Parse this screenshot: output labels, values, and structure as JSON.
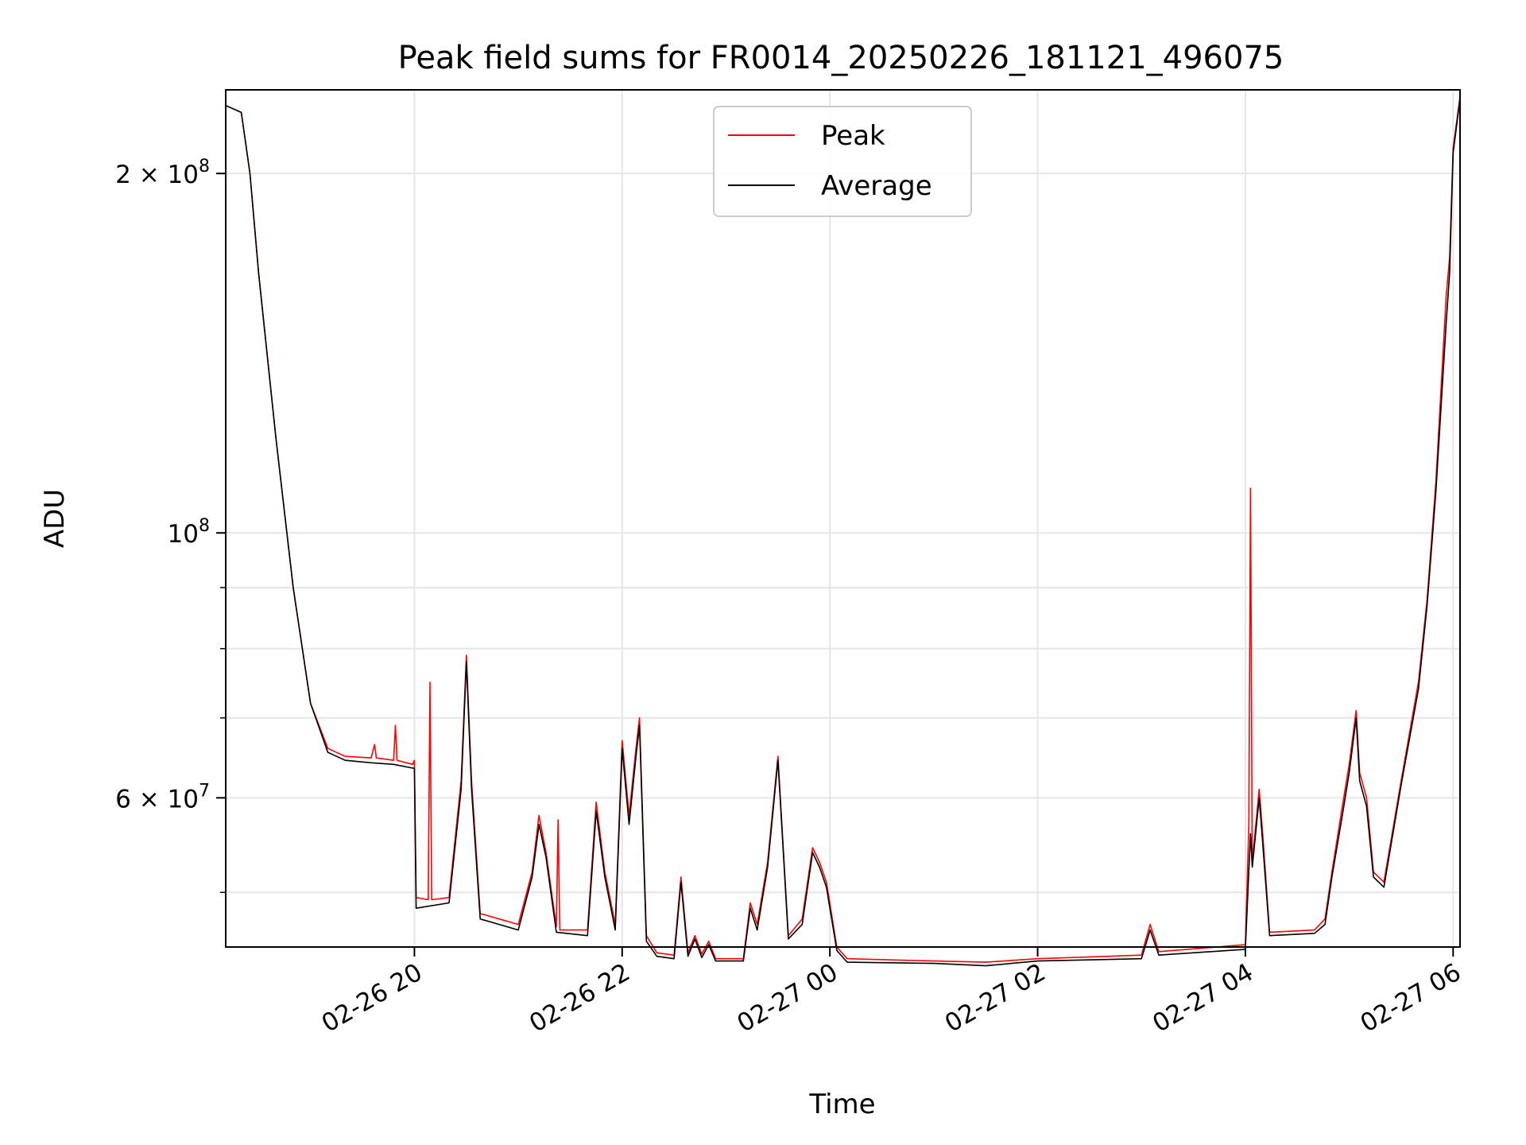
{
  "chart_data": {
    "type": "line",
    "title": "Peak field sums for FR0014_20250226_181121_496075",
    "xlabel": "Time",
    "ylabel": "ADU",
    "yscale": "log",
    "ylim": [
      45000000,
      235000000
    ],
    "xlim": [
      "2025-02-26 18:11",
      "2025-02-27 06:04"
    ],
    "grid": true,
    "legend_position": "upper-center",
    "x_ticks": [
      {
        "value": "2025-02-26 20:00",
        "label": "02-26 20"
      },
      {
        "value": "2025-02-26 22:00",
        "label": "02-26 22"
      },
      {
        "value": "2025-02-27 00:00",
        "label": "02-27 00"
      },
      {
        "value": "2025-02-27 02:00",
        "label": "02-27 02"
      },
      {
        "value": "2025-02-27 04:00",
        "label": "02-27 04"
      },
      {
        "value": "2025-02-27 06:00",
        "label": "02-27 06"
      }
    ],
    "y_ticks": [
      {
        "value": 60000000,
        "label": "6 × 10",
        "exp": "7"
      },
      {
        "value": 100000000,
        "label": "10",
        "exp": "8"
      },
      {
        "value": 200000000,
        "label": "2 × 10",
        "exp": "8"
      }
    ],
    "series": [
      {
        "name": "Peak",
        "color": "#ff0000",
        "points": [
          [
            "2025-02-26 18:11",
            228000000
          ],
          [
            "2025-02-26 18:20",
            225000000
          ],
          [
            "2025-02-26 18:25",
            200000000
          ],
          [
            "2025-02-26 18:30",
            165000000
          ],
          [
            "2025-02-26 18:40",
            120000000
          ],
          [
            "2025-02-26 18:50",
            90000000
          ],
          [
            "2025-02-26 19:00",
            72000000
          ],
          [
            "2025-02-26 19:10",
            66000000
          ],
          [
            "2025-02-26 19:20",
            65000000
          ],
          [
            "2025-02-26 19:35",
            64800000
          ],
          [
            "2025-02-26 19:37",
            66500000
          ],
          [
            "2025-02-26 19:38",
            64800000
          ],
          [
            "2025-02-26 19:48",
            64500000
          ],
          [
            "2025-02-26 19:49",
            69000000
          ],
          [
            "2025-02-26 19:50",
            64500000
          ],
          [
            "2025-02-26 19:59",
            64000000
          ],
          [
            "2025-02-26 20:00",
            64500000
          ],
          [
            "2025-02-26 20:01",
            49500000
          ],
          [
            "2025-02-26 20:08",
            49300000
          ],
          [
            "2025-02-26 20:09",
            75000000
          ],
          [
            "2025-02-26 20:10",
            49300000
          ],
          [
            "2025-02-26 20:20",
            49500000
          ],
          [
            "2025-02-26 20:27",
            62000000
          ],
          [
            "2025-02-26 20:30",
            79000000
          ],
          [
            "2025-02-26 20:33",
            62000000
          ],
          [
            "2025-02-26 20:38",
            48000000
          ],
          [
            "2025-02-26 21:00",
            47000000
          ],
          [
            "2025-02-26 21:08",
            52000000
          ],
          [
            "2025-02-26 21:12",
            58000000
          ],
          [
            "2025-02-26 21:16",
            54000000
          ],
          [
            "2025-02-26 21:22",
            46800000
          ],
          [
            "2025-02-26 21:23",
            57500000
          ],
          [
            "2025-02-26 21:24",
            46500000
          ],
          [
            "2025-02-26 21:40",
            46500000
          ],
          [
            "2025-02-26 21:45",
            59500000
          ],
          [
            "2025-02-26 21:50",
            52000000
          ],
          [
            "2025-02-26 21:56",
            47000000
          ],
          [
            "2025-02-26 22:00",
            67000000
          ],
          [
            "2025-02-26 22:04",
            58000000
          ],
          [
            "2025-02-26 22:08",
            66000000
          ],
          [
            "2025-02-26 22:10",
            70000000
          ],
          [
            "2025-02-26 22:14",
            46000000
          ],
          [
            "2025-02-26 22:20",
            44500000
          ],
          [
            "2025-02-26 22:30",
            44300000
          ],
          [
            "2025-02-26 22:34",
            51500000
          ],
          [
            "2025-02-26 22:38",
            44500000
          ],
          [
            "2025-02-26 22:42",
            46000000
          ],
          [
            "2025-02-26 22:46",
            44400000
          ],
          [
            "2025-02-26 22:50",
            45500000
          ],
          [
            "2025-02-26 22:54",
            44000000
          ],
          [
            "2025-02-26 23:10",
            44000000
          ],
          [
            "2025-02-26 23:14",
            49000000
          ],
          [
            "2025-02-26 23:18",
            47000000
          ],
          [
            "2025-02-26 23:24",
            53000000
          ],
          [
            "2025-02-26 23:30",
            65000000
          ],
          [
            "2025-02-26 23:36",
            46000000
          ],
          [
            "2025-02-26 23:44",
            47500000
          ],
          [
            "2025-02-26 23:50",
            54500000
          ],
          [
            "2025-02-26 23:54",
            53000000
          ],
          [
            "2025-02-26 23:58",
            51000000
          ],
          [
            "2025-02-27 00:04",
            45000000
          ],
          [
            "2025-02-27 00:10",
            44000000
          ],
          [
            "2025-02-27 01:00",
            43800000
          ],
          [
            "2025-02-27 01:30",
            43700000
          ],
          [
            "2025-02-27 02:00",
            44000000
          ],
          [
            "2025-02-27 03:00",
            44300000
          ],
          [
            "2025-02-27 03:05",
            47000000
          ],
          [
            "2025-02-27 03:10",
            44600000
          ],
          [
            "2025-02-27 04:00",
            45200000
          ],
          [
            "2025-02-27 04:02",
            57000000
          ],
          [
            "2025-02-27 04:03",
            109000000
          ],
          [
            "2025-02-27 04:04",
            53000000
          ],
          [
            "2025-02-27 04:08",
            61000000
          ],
          [
            "2025-02-27 04:10",
            56000000
          ],
          [
            "2025-02-27 04:14",
            46300000
          ],
          [
            "2025-02-27 04:40",
            46500000
          ],
          [
            "2025-02-27 04:46",
            47500000
          ],
          [
            "2025-02-27 04:50",
            52000000
          ],
          [
            "2025-02-27 04:56",
            59000000
          ],
          [
            "2025-02-27 05:00",
            64000000
          ],
          [
            "2025-02-27 05:04",
            71000000
          ],
          [
            "2025-02-27 05:06",
            63000000
          ],
          [
            "2025-02-27 05:10",
            60000000
          ],
          [
            "2025-02-27 05:14",
            52000000
          ],
          [
            "2025-02-27 05:20",
            51000000
          ],
          [
            "2025-02-27 05:30",
            62000000
          ],
          [
            "2025-02-27 05:40",
            75000000
          ],
          [
            "2025-02-27 05:45",
            88000000
          ],
          [
            "2025-02-27 05:50",
            110000000
          ],
          [
            "2025-02-27 05:56",
            158000000
          ],
          [
            "2025-02-27 05:58",
            170000000
          ],
          [
            "2025-02-27 06:00",
            210000000
          ],
          [
            "2025-02-27 06:04",
            232000000
          ]
        ]
      },
      {
        "name": "Average",
        "color": "#000000",
        "points": [
          [
            "2025-02-26 18:11",
            228000000
          ],
          [
            "2025-02-26 18:20",
            225000000
          ],
          [
            "2025-02-26 18:25",
            200000000
          ],
          [
            "2025-02-26 18:30",
            165000000
          ],
          [
            "2025-02-26 18:40",
            120000000
          ],
          [
            "2025-02-26 18:50",
            90000000
          ],
          [
            "2025-02-26 19:00",
            72000000
          ],
          [
            "2025-02-26 19:10",
            65500000
          ],
          [
            "2025-02-26 19:20",
            64500000
          ],
          [
            "2025-02-26 19:35",
            64200000
          ],
          [
            "2025-02-26 19:48",
            64000000
          ],
          [
            "2025-02-26 20:00",
            63500000
          ],
          [
            "2025-02-26 20:01",
            48500000
          ],
          [
            "2025-02-26 20:20",
            49000000
          ],
          [
            "2025-02-26 20:27",
            61000000
          ],
          [
            "2025-02-26 20:30",
            78000000
          ],
          [
            "2025-02-26 20:33",
            61000000
          ],
          [
            "2025-02-26 20:38",
            47500000
          ],
          [
            "2025-02-26 21:00",
            46500000
          ],
          [
            "2025-02-26 21:08",
            51500000
          ],
          [
            "2025-02-26 21:12",
            57000000
          ],
          [
            "2025-02-26 21:16",
            53500000
          ],
          [
            "2025-02-26 21:22",
            46300000
          ],
          [
            "2025-02-26 21:40",
            46000000
          ],
          [
            "2025-02-26 21:45",
            58500000
          ],
          [
            "2025-02-26 21:50",
            51500000
          ],
          [
            "2025-02-26 21:56",
            46500000
          ],
          [
            "2025-02-26 22:00",
            66000000
          ],
          [
            "2025-02-26 22:04",
            57000000
          ],
          [
            "2025-02-26 22:08",
            65000000
          ],
          [
            "2025-02-26 22:10",
            69000000
          ],
          [
            "2025-02-26 22:14",
            45500000
          ],
          [
            "2025-02-26 22:20",
            44200000
          ],
          [
            "2025-02-26 22:30",
            44000000
          ],
          [
            "2025-02-26 22:34",
            51000000
          ],
          [
            "2025-02-26 22:38",
            44200000
          ],
          [
            "2025-02-26 22:42",
            45700000
          ],
          [
            "2025-02-26 22:46",
            44100000
          ],
          [
            "2025-02-26 22:50",
            45200000
          ],
          [
            "2025-02-26 22:54",
            43800000
          ],
          [
            "2025-02-26 23:10",
            43800000
          ],
          [
            "2025-02-26 23:14",
            48500000
          ],
          [
            "2025-02-26 23:18",
            46500000
          ],
          [
            "2025-02-26 23:24",
            52500000
          ],
          [
            "2025-02-26 23:30",
            64500000
          ],
          [
            "2025-02-26 23:36",
            45700000
          ],
          [
            "2025-02-26 23:44",
            47000000
          ],
          [
            "2025-02-26 23:50",
            54000000
          ],
          [
            "2025-02-26 23:54",
            52500000
          ],
          [
            "2025-02-26 23:58",
            50500000
          ],
          [
            "2025-02-27 00:04",
            44700000
          ],
          [
            "2025-02-27 00:10",
            43700000
          ],
          [
            "2025-02-27 01:00",
            43600000
          ],
          [
            "2025-02-27 01:30",
            43400000
          ],
          [
            "2025-02-27 02:00",
            43800000
          ],
          [
            "2025-02-27 03:00",
            44000000
          ],
          [
            "2025-02-27 03:05",
            46500000
          ],
          [
            "2025-02-27 03:10",
            44300000
          ],
          [
            "2025-02-27 04:00",
            44800000
          ],
          [
            "2025-02-27 04:03",
            56000000
          ],
          [
            "2025-02-27 04:04",
            52500000
          ],
          [
            "2025-02-27 04:08",
            60000000
          ],
          [
            "2025-02-27 04:10",
            55000000
          ],
          [
            "2025-02-27 04:14",
            46000000
          ],
          [
            "2025-02-27 04:40",
            46200000
          ],
          [
            "2025-02-27 04:46",
            47000000
          ],
          [
            "2025-02-27 04:50",
            51500000
          ],
          [
            "2025-02-27 04:56",
            58000000
          ],
          [
            "2025-02-27 05:00",
            63000000
          ],
          [
            "2025-02-27 05:04",
            70000000
          ],
          [
            "2025-02-27 05:06",
            62000000
          ],
          [
            "2025-02-27 05:10",
            59000000
          ],
          [
            "2025-02-27 05:14",
            51500000
          ],
          [
            "2025-02-27 05:20",
            50500000
          ],
          [
            "2025-02-27 05:30",
            61500000
          ],
          [
            "2025-02-27 05:40",
            74000000
          ],
          [
            "2025-02-27 05:45",
            87000000
          ],
          [
            "2025-02-27 05:50",
            108000000
          ],
          [
            "2025-02-27 05:56",
            150000000
          ],
          [
            "2025-02-27 05:58",
            165000000
          ],
          [
            "2025-02-27 06:00",
            208000000
          ],
          [
            "2025-02-27 06:04",
            231000000
          ]
        ]
      }
    ]
  }
}
